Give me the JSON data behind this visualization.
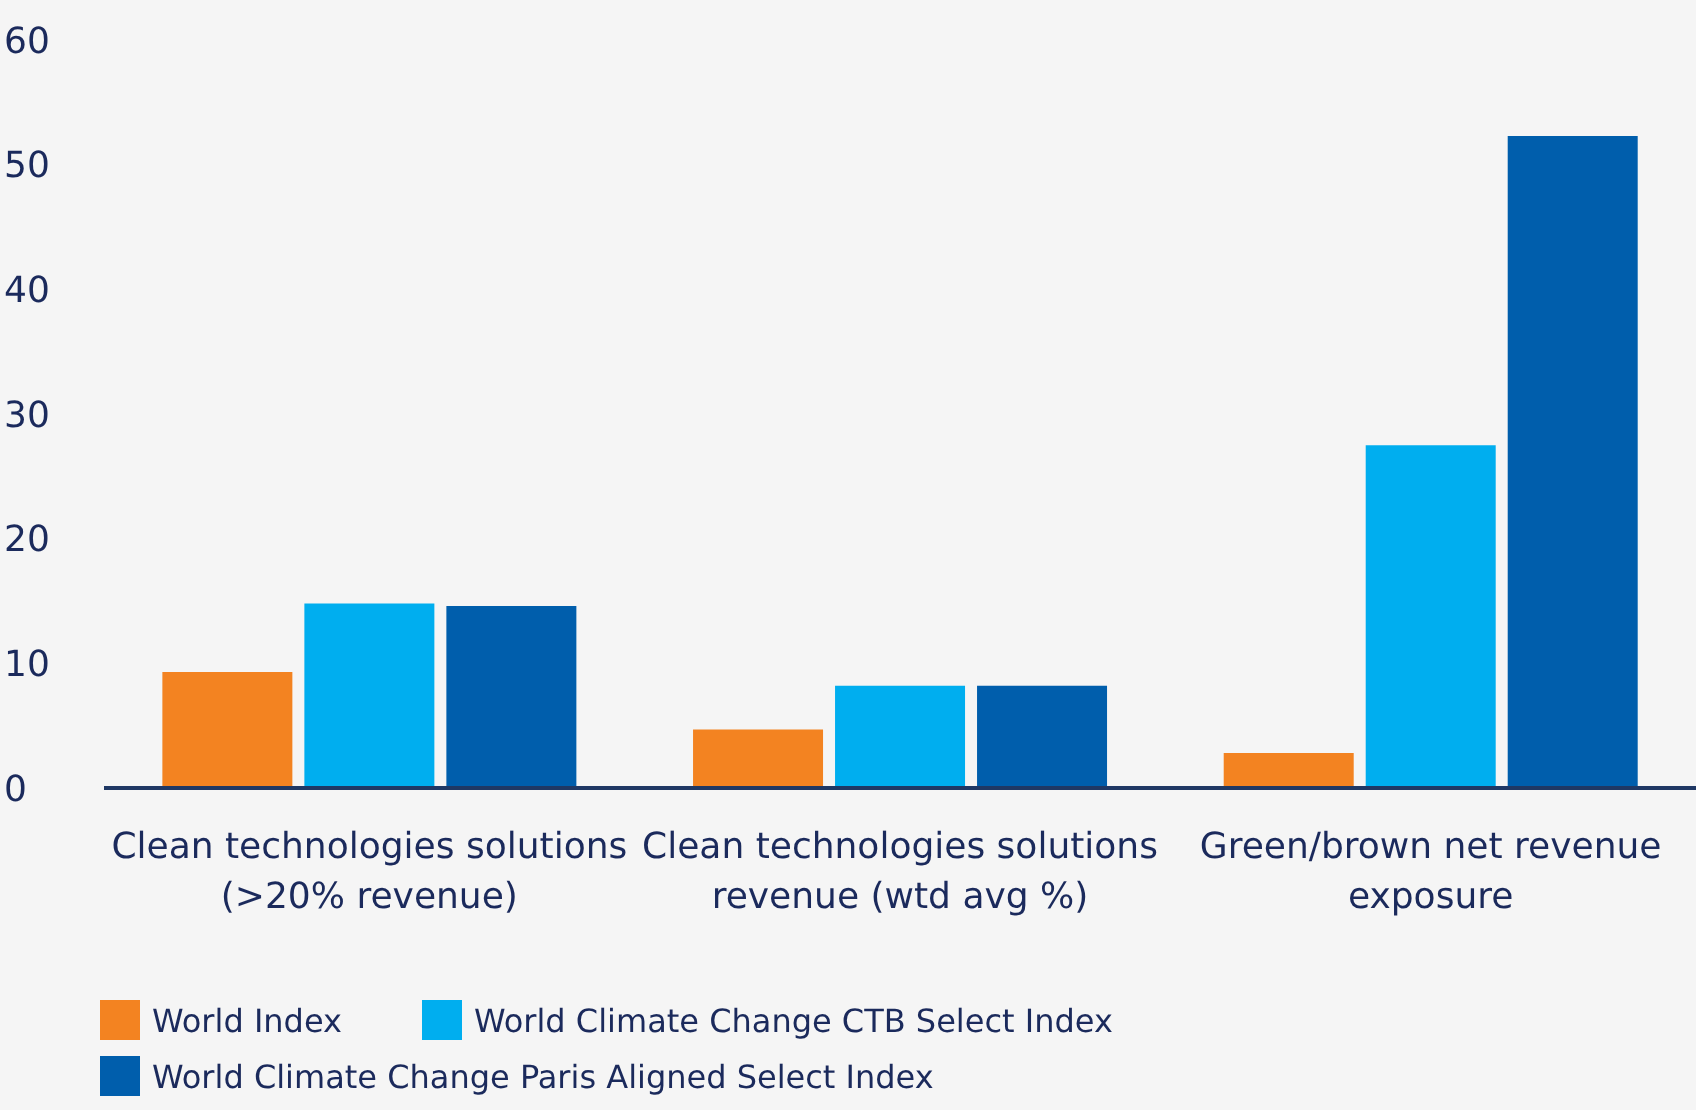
{
  "chart_data": {
    "type": "bar",
    "categories": [
      "Clean technologies solutions (>20% revenue)",
      "Clean technologies solutions revenue (wtd avg %)",
      "Green/brown net revenue exposure"
    ],
    "series": [
      {
        "name": "World Index",
        "color": "#f38321",
        "values": [
          9.3,
          4.7,
          2.8
        ]
      },
      {
        "name": "World Climate Change CTB Select Index",
        "color": "#00aeef",
        "values": [
          14.8,
          8.2,
          27.5
        ]
      },
      {
        "name": "World Climate Change Paris Aligned Select Index",
        "color": "#005eac",
        "values": [
          14.6,
          8.2,
          52.3
        ]
      }
    ],
    "ylim": [
      0,
      60
    ],
    "yticks": [
      0,
      10,
      20,
      30,
      40,
      50,
      60
    ],
    "grid": false,
    "legend": "bottom"
  }
}
